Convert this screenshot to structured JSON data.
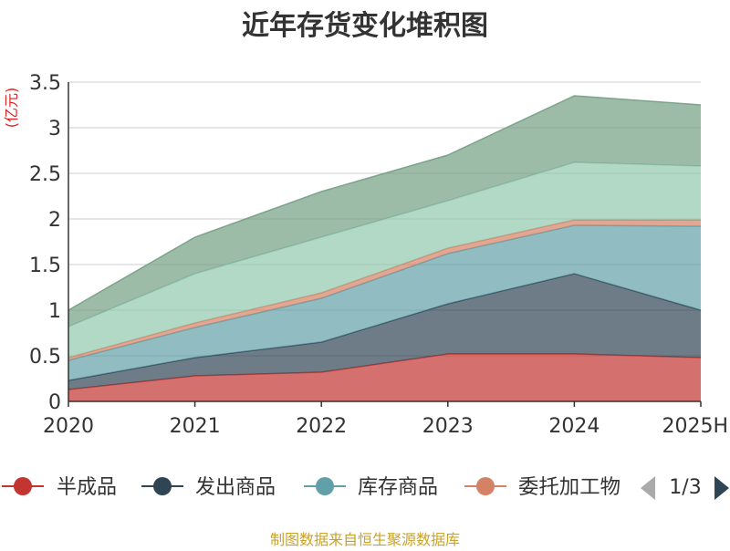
{
  "chart_data": {
    "type": "area",
    "title": "近年存货变化堆积图",
    "ylabel": "(亿元)",
    "categories": [
      "2020",
      "2021",
      "2022",
      "2023",
      "2024",
      "2025H"
    ],
    "yticks": [
      "0",
      "0.5",
      "1",
      "1.5",
      "2",
      "2.5",
      "3",
      "3.5"
    ],
    "ylim": [
      0,
      3.5
    ],
    "stacked": true,
    "grid": true,
    "series": [
      {
        "name": "半成品",
        "color": "#c23531",
        "values": [
          0.13,
          0.28,
          0.32,
          0.52,
          0.52,
          0.48
        ]
      },
      {
        "name": "发出商品",
        "color": "#2f4554",
        "values": [
          0.1,
          0.2,
          0.33,
          0.55,
          0.88,
          0.52
        ]
      },
      {
        "name": "库存商品",
        "color": "#61a0a8",
        "values": [
          0.22,
          0.33,
          0.48,
          0.55,
          0.53,
          0.92
        ]
      },
      {
        "name": "委托加工物资",
        "color": "#d48265",
        "values": [
          0.03,
          0.05,
          0.06,
          0.06,
          0.06,
          0.07
        ]
      },
      {
        "name": "",
        "color": "#91c7ae",
        "values": [
          0.34,
          0.54,
          0.61,
          0.52,
          0.63,
          0.59
        ]
      },
      {
        "name": "",
        "color": "#749f83",
        "values": [
          0.18,
          0.4,
          0.5,
          0.5,
          0.73,
          0.67
        ]
      }
    ]
  },
  "legend": {
    "items": [
      {
        "label": "半成品",
        "color": "#c23531"
      },
      {
        "label": "发出商品",
        "color": "#2f4554"
      },
      {
        "label": "库存商品",
        "color": "#61a0a8"
      },
      {
        "label": "委托加工物",
        "color": "#d48265"
      }
    ],
    "page": "1/3"
  },
  "source": "制图数据来自恒生聚源数据库"
}
